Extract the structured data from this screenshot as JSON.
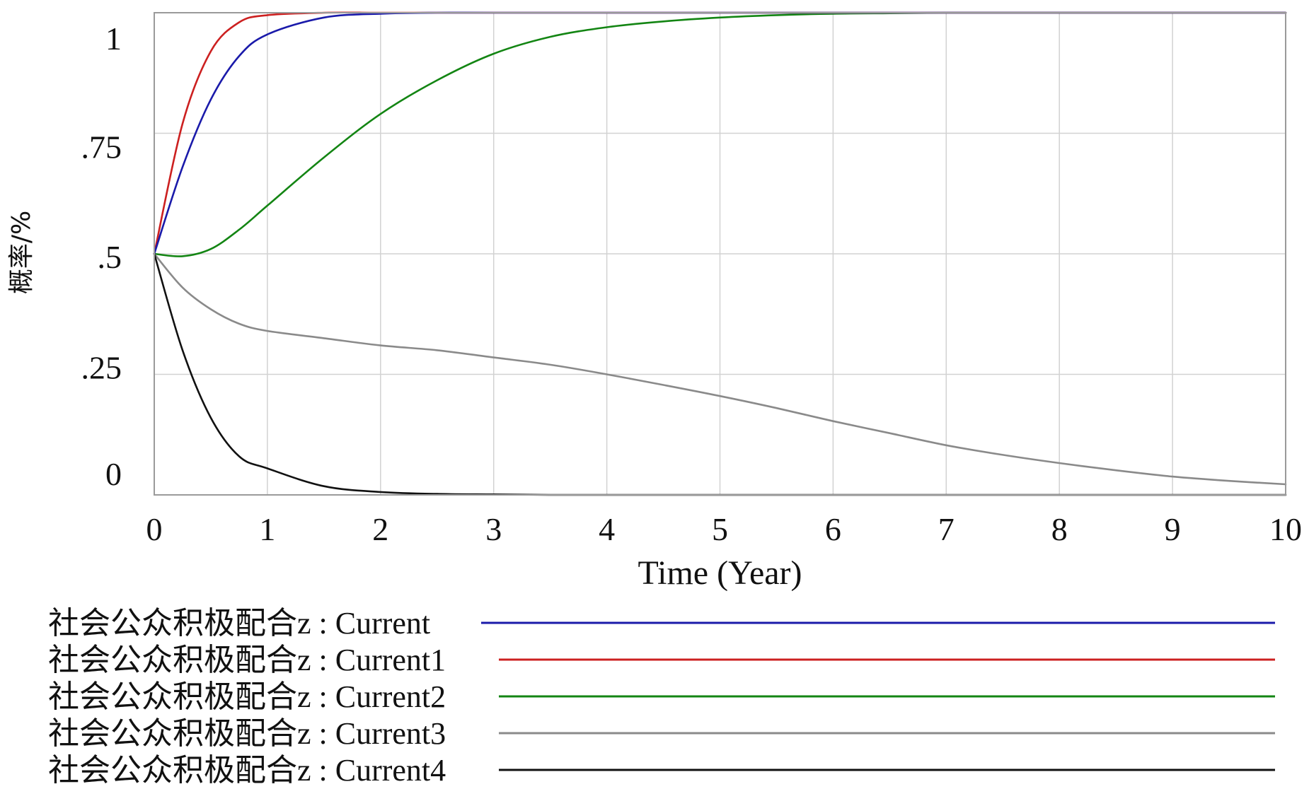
{
  "chart_data": {
    "type": "line",
    "title": "",
    "xlabel": "Time (Year)",
    "ylabel": "概率/%",
    "xlim": [
      0,
      10
    ],
    "ylim": [
      0,
      1
    ],
    "grid": true,
    "legend_position": "bottom",
    "x_ticks": [
      "0",
      "1",
      "2",
      "3",
      "4",
      "5",
      "6",
      "7",
      "8",
      "9",
      "10"
    ],
    "y_ticks": [
      {
        "value": 0,
        "label": "0"
      },
      {
        "value": 0.25,
        "label": ".25"
      },
      {
        "value": 0.5,
        "label": ".5"
      },
      {
        "value": 0.75,
        "label": ".75"
      },
      {
        "value": 1,
        "label": "1"
      }
    ],
    "x": [
      0,
      0.25,
      0.5,
      0.75,
      1,
      1.5,
      2,
      2.5,
      3,
      3.5,
      4,
      4.5,
      5,
      5.5,
      6,
      6.5,
      7,
      7.5,
      8,
      8.5,
      9,
      9.5,
      10
    ],
    "series": [
      {
        "name": "社会公众积极配合z : Current",
        "color": "#1a1aaa",
        "values": [
          0.5,
          0.68,
          0.82,
          0.91,
          0.955,
          0.99,
          0.998,
          1,
          1,
          1,
          1,
          1,
          1,
          1,
          1,
          1,
          1,
          1,
          1,
          1,
          1,
          1,
          1
        ]
      },
      {
        "name": "社会公众积极配合z : Current1",
        "color": "#cc2020",
        "values": [
          0.5,
          0.77,
          0.92,
          0.98,
          0.995,
          1,
          1,
          1,
          1,
          1,
          1,
          1,
          1,
          1,
          1,
          1,
          1,
          1,
          1,
          1,
          1,
          1,
          1
        ]
      },
      {
        "name": "社会公众积极配合z : Current2",
        "color": "#138513",
        "values": [
          0.5,
          0.495,
          0.51,
          0.55,
          0.6,
          0.7,
          0.79,
          0.86,
          0.915,
          0.95,
          0.97,
          0.982,
          0.99,
          0.995,
          0.998,
          0.999,
          1,
          1,
          1,
          1,
          1,
          1,
          1
        ]
      },
      {
        "name": "社会公众积极配合z : Current3",
        "color": "#8a8a8a",
        "values": [
          0.5,
          0.43,
          0.385,
          0.355,
          0.34,
          0.325,
          0.31,
          0.3,
          0.285,
          0.27,
          0.25,
          0.228,
          0.205,
          0.18,
          0.153,
          0.128,
          0.103,
          0.083,
          0.066,
          0.051,
          0.038,
          0.029,
          0.022
        ]
      },
      {
        "name": "社会公众积极配合z : Current4",
        "color": "#111111",
        "values": [
          0.5,
          0.3,
          0.16,
          0.08,
          0.055,
          0.018,
          0.006,
          0.002,
          0.001,
          0,
          0,
          0,
          0,
          0,
          0,
          0,
          0,
          0,
          0,
          0,
          0,
          0,
          0
        ]
      }
    ]
  }
}
